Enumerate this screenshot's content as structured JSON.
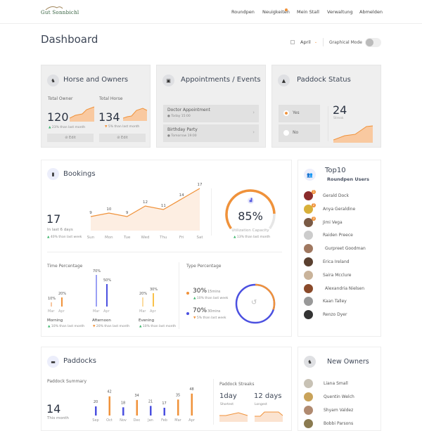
{
  "header": {
    "logo": "Gut Sonnbichl",
    "nav": [
      "Roundpen",
      "Neuigkeiten",
      "Mein Stall",
      "Verwaltung",
      "Abmelden"
    ]
  },
  "page": {
    "title": "Dashboard",
    "month": "April",
    "mode_label": "Graphical Mode",
    "graphical_mode": false
  },
  "horse_owners": {
    "title": "Horse and Owners",
    "owner_label": "Total Owner",
    "owner_value": "120",
    "owner_change": "23% than last month",
    "horse_label": "Total Horse",
    "horse_value": "134",
    "horse_change": "5% than last month",
    "edit": "Edit"
  },
  "appointments": {
    "title": "Appointments / Events",
    "items": [
      {
        "title": "Doctor Appointment",
        "time": "Today 15:00"
      },
      {
        "title": "Birthday Party",
        "time": "Tomorrow 19:00"
      }
    ]
  },
  "paddock_status": {
    "title": "Paddock Status",
    "yes": "Yes",
    "no": "No",
    "selected": "Yes",
    "streak_value": "24",
    "streak_label": "Streak"
  },
  "bookings": {
    "title": "Bookings",
    "total": "17",
    "total_label": "In last 6 days",
    "total_change": "40% than last week",
    "chart_data": {
      "type": "area",
      "categories": [
        "Sun",
        "Mon",
        "Tue",
        "Wed",
        "Thu",
        "Fri",
        "Sat"
      ],
      "values": [
        9,
        10,
        9,
        12,
        11,
        14,
        17
      ]
    },
    "utilization": {
      "value": "85%",
      "fraction": 0.85,
      "label": "Utilization Capacity",
      "change": "13% than last month"
    },
    "time_percentage": {
      "title": "Time Percentage",
      "groups": [
        {
          "name": "Morning",
          "change": "10% than last month",
          "dir": "up",
          "bars": [
            {
              "label": "Mar",
              "value": 10,
              "display": "10%",
              "color": "#f7c6a0"
            },
            {
              "label": "Apr",
              "value": 20,
              "display": "20%",
              "color": "#f0923a"
            }
          ]
        },
        {
          "name": "Afternoon",
          "change": "20% than last month",
          "dir": "down",
          "bars": [
            {
              "label": "Mar",
              "value": 70,
              "display": "70%",
              "color": "#9aa0f4"
            },
            {
              "label": "Apr",
              "value": 50,
              "display": "50%",
              "color": "#4b50e0"
            }
          ]
        },
        {
          "name": "Evening",
          "change": "10% than last month",
          "dir": "up",
          "bars": [
            {
              "label": "Mar",
              "value": 20,
              "display": "20%",
              "color": "#fcdca0"
            },
            {
              "label": "Apr",
              "value": 30,
              "display": "30%",
              "color": "#f9c24a"
            }
          ]
        }
      ]
    },
    "type_percentage": {
      "title": "Type Percentage",
      "items": [
        {
          "value": "30%",
          "unit": "15mins",
          "change": "10% than last week",
          "dir": "up",
          "color": "#f0923a"
        },
        {
          "value": "70%",
          "unit": "30mins",
          "change": "5% than last week",
          "dir": "down",
          "color": "#4b50e0"
        }
      ]
    }
  },
  "top10": {
    "title": "Top10",
    "subtitle": "Roundpen Users",
    "users": [
      "Gerald Dock",
      "Anya Geraldine",
      "Jimi Vega",
      "Raiden Preece",
      "Gurpreet Goodman",
      "Erica Ireland",
      "Saira Mcclure",
      "Alexandria Nielsen",
      "Kaan Talley",
      "Renzo Dyer"
    ],
    "badges": [
      "1",
      "2",
      "3"
    ]
  },
  "paddocks": {
    "title": "Paddocks",
    "summary_title": "Paddock Summary",
    "total": "14",
    "total_label": "This month",
    "chart_data": {
      "type": "bar",
      "categories": [
        "Sep",
        "Oct",
        "Nov",
        "Dec",
        "Jan",
        "Feb",
        "Mar",
        "Apr"
      ],
      "values": [
        20,
        42,
        18,
        34,
        21,
        17,
        35,
        48
      ],
      "colors": [
        "#4b50e0",
        "#f0923a",
        "#4b50e0",
        "#f0923a",
        "#4b50e0",
        "#4b50e0",
        "#f0923a",
        "#f0923a"
      ]
    },
    "streaks": {
      "title": "Paddock Streaks",
      "shortest": "1day",
      "shortest_label": "Shortest",
      "longest": "12 days",
      "longest_label": "Longest"
    }
  },
  "new_owners": {
    "title": "New Owners",
    "owners": [
      "Liana Small",
      "Quentin Welch",
      "Shyam Valdez",
      "Bobbi Parsons"
    ]
  }
}
